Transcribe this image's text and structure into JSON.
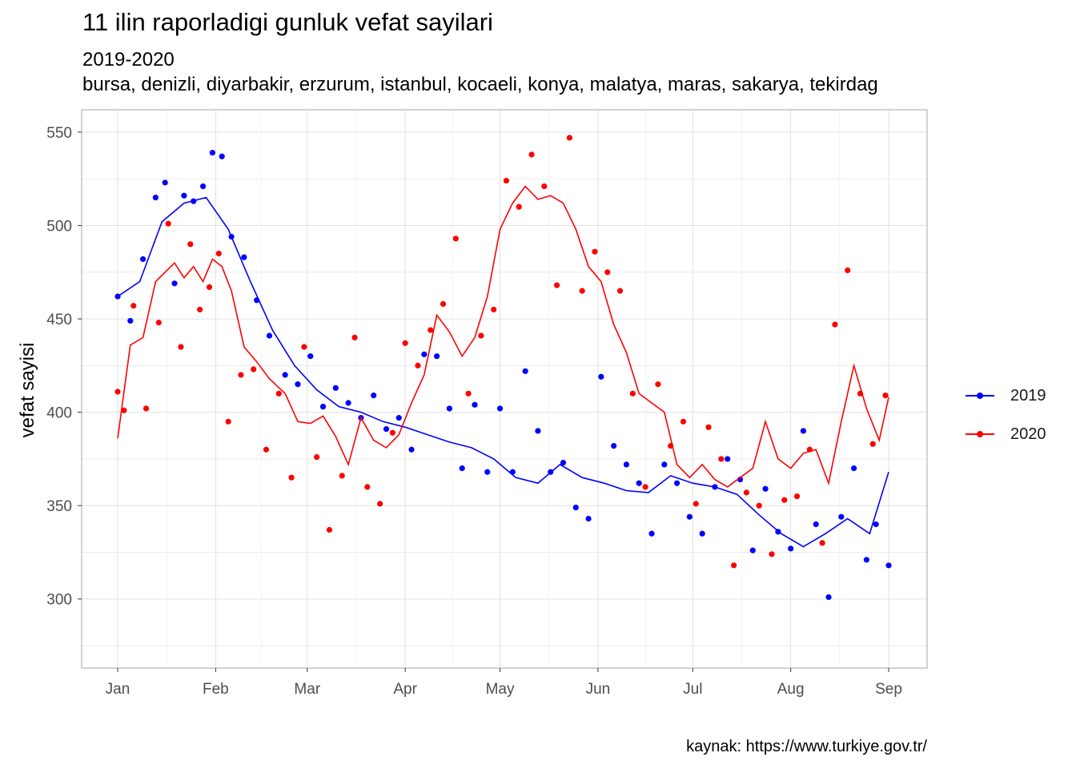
{
  "header": {
    "title": "11 ilin raporladigi gunluk vefat sayilari",
    "subtitle": "2019-2020",
    "subtitle2": "bursa, denizli, diyarbakir, erzurum, istanbul, kocaeli, konya, malatya, maras, sakarya, tekirdag"
  },
  "caption": "kaynak: https://www.turkiye.gov.tr/",
  "chart_data": {
    "type": "scatter",
    "xlabel": "",
    "ylabel": "vefat sayisi",
    "x_ticks": [
      "Jan",
      "Feb",
      "Mar",
      "Apr",
      "May",
      "Jun",
      "Jul",
      "Aug",
      "Sep"
    ],
    "y_ticks": [
      300,
      350,
      400,
      450,
      500,
      550
    ],
    "xlim": [
      1,
      245
    ],
    "ylim": [
      263,
      562
    ],
    "grid": true,
    "legend_position": "right",
    "series": [
      {
        "name": "2019",
        "color": "#0000ff",
        "smoothed": [
          [
            1,
            462
          ],
          [
            8,
            470
          ],
          [
            15,
            502
          ],
          [
            22,
            512
          ],
          [
            29,
            515
          ],
          [
            36,
            498
          ],
          [
            43,
            470
          ],
          [
            50,
            444
          ],
          [
            57,
            425
          ],
          [
            64,
            412
          ],
          [
            71,
            403
          ],
          [
            78,
            400
          ],
          [
            85,
            395
          ],
          [
            92,
            392
          ],
          [
            99,
            388
          ],
          [
            106,
            384
          ],
          [
            113,
            381
          ],
          [
            120,
            375
          ],
          [
            127,
            365
          ],
          [
            134,
            362
          ],
          [
            141,
            372
          ],
          [
            148,
            365
          ],
          [
            155,
            362
          ],
          [
            162,
            358
          ],
          [
            169,
            357
          ],
          [
            176,
            366
          ],
          [
            183,
            362
          ],
          [
            190,
            360
          ],
          [
            197,
            356
          ],
          [
            204,
            345
          ],
          [
            211,
            335
          ],
          [
            218,
            328
          ],
          [
            225,
            335
          ],
          [
            232,
            343
          ],
          [
            239,
            335
          ],
          [
            245,
            368
          ]
        ],
        "points": [
          [
            1,
            462
          ],
          [
            5,
            449
          ],
          [
            9,
            482
          ],
          [
            13,
            515
          ],
          [
            16,
            523
          ],
          [
            19,
            469
          ],
          [
            22,
            516
          ],
          [
            25,
            513
          ],
          [
            28,
            521
          ],
          [
            31,
            539
          ],
          [
            34,
            537
          ],
          [
            37,
            494
          ],
          [
            41,
            483
          ],
          [
            45,
            460
          ],
          [
            49,
            441
          ],
          [
            54,
            420
          ],
          [
            58,
            415
          ],
          [
            62,
            430
          ],
          [
            66,
            403
          ],
          [
            70,
            413
          ],
          [
            74,
            405
          ],
          [
            78,
            397
          ],
          [
            82,
            409
          ],
          [
            86,
            391
          ],
          [
            90,
            397
          ],
          [
            94,
            380
          ],
          [
            98,
            431
          ],
          [
            102,
            430
          ],
          [
            106,
            402
          ],
          [
            110,
            370
          ],
          [
            114,
            404
          ],
          [
            118,
            368
          ],
          [
            122,
            402
          ],
          [
            126,
            368
          ],
          [
            130,
            422
          ],
          [
            134,
            390
          ],
          [
            138,
            368
          ],
          [
            142,
            373
          ],
          [
            146,
            349
          ],
          [
            150,
            343
          ],
          [
            154,
            419
          ],
          [
            158,
            382
          ],
          [
            162,
            372
          ],
          [
            166,
            362
          ],
          [
            170,
            335
          ],
          [
            174,
            372
          ],
          [
            178,
            362
          ],
          [
            182,
            344
          ],
          [
            186,
            335
          ],
          [
            190,
            360
          ],
          [
            194,
            375
          ],
          [
            198,
            364
          ],
          [
            202,
            326
          ],
          [
            206,
            359
          ],
          [
            210,
            336
          ],
          [
            214,
            327
          ],
          [
            218,
            390
          ],
          [
            222,
            340
          ],
          [
            226,
            301
          ],
          [
            230,
            344
          ],
          [
            234,
            370
          ],
          [
            238,
            321
          ],
          [
            241,
            340
          ],
          [
            245,
            318
          ]
        ]
      },
      {
        "name": "2020",
        "color": "#ff0000",
        "smoothed": [
          [
            1,
            386
          ],
          [
            5,
            436
          ],
          [
            9,
            440
          ],
          [
            13,
            470
          ],
          [
            16,
            475
          ],
          [
            19,
            480
          ],
          [
            22,
            472
          ],
          [
            25,
            478
          ],
          [
            28,
            470
          ],
          [
            31,
            482
          ],
          [
            34,
            478
          ],
          [
            37,
            465
          ],
          [
            41,
            435
          ],
          [
            45,
            427
          ],
          [
            49,
            418
          ],
          [
            54,
            410
          ],
          [
            58,
            395
          ],
          [
            62,
            394
          ],
          [
            66,
            398
          ],
          [
            70,
            387
          ],
          [
            74,
            372
          ],
          [
            78,
            397
          ],
          [
            82,
            385
          ],
          [
            86,
            381
          ],
          [
            90,
            388
          ],
          [
            94,
            405
          ],
          [
            98,
            420
          ],
          [
            102,
            452
          ],
          [
            106,
            443
          ],
          [
            110,
            430
          ],
          [
            114,
            440
          ],
          [
            118,
            462
          ],
          [
            122,
            498
          ],
          [
            126,
            512
          ],
          [
            130,
            521
          ],
          [
            134,
            514
          ],
          [
            138,
            516
          ],
          [
            142,
            512
          ],
          [
            146,
            498
          ],
          [
            150,
            478
          ],
          [
            154,
            470
          ],
          [
            158,
            447
          ],
          [
            162,
            432
          ],
          [
            166,
            410
          ],
          [
            170,
            405
          ],
          [
            174,
            400
          ],
          [
            178,
            372
          ],
          [
            182,
            365
          ],
          [
            186,
            372
          ],
          [
            190,
            364
          ],
          [
            194,
            360
          ],
          [
            198,
            365
          ],
          [
            202,
            370
          ],
          [
            206,
            395
          ],
          [
            210,
            375
          ],
          [
            214,
            370
          ],
          [
            218,
            378
          ],
          [
            222,
            380
          ],
          [
            226,
            362
          ],
          [
            230,
            395
          ],
          [
            234,
            425
          ],
          [
            238,
            402
          ],
          [
            242,
            385
          ],
          [
            245,
            408
          ]
        ],
        "points": [
          [
            1,
            411
          ],
          [
            3,
            401
          ],
          [
            6,
            457
          ],
          [
            10,
            402
          ],
          [
            14,
            448
          ],
          [
            17,
            501
          ],
          [
            21,
            435
          ],
          [
            24,
            490
          ],
          [
            27,
            455
          ],
          [
            30,
            467
          ],
          [
            33,
            485
          ],
          [
            36,
            395
          ],
          [
            40,
            420
          ],
          [
            44,
            423
          ],
          [
            48,
            380
          ],
          [
            52,
            410
          ],
          [
            56,
            365
          ],
          [
            60,
            435
          ],
          [
            64,
            376
          ],
          [
            68,
            337
          ],
          [
            72,
            366
          ],
          [
            76,
            440
          ],
          [
            80,
            360
          ],
          [
            84,
            351
          ],
          [
            88,
            389
          ],
          [
            92,
            437
          ],
          [
            96,
            425
          ],
          [
            100,
            444
          ],
          [
            104,
            458
          ],
          [
            108,
            493
          ],
          [
            112,
            410
          ],
          [
            116,
            441
          ],
          [
            120,
            455
          ],
          [
            124,
            524
          ],
          [
            128,
            510
          ],
          [
            132,
            538
          ],
          [
            136,
            521
          ],
          [
            140,
            468
          ],
          [
            144,
            547
          ],
          [
            148,
            465
          ],
          [
            152,
            486
          ],
          [
            156,
            475
          ],
          [
            160,
            465
          ],
          [
            164,
            410
          ],
          [
            168,
            360
          ],
          [
            172,
            415
          ],
          [
            176,
            382
          ],
          [
            180,
            395
          ],
          [
            184,
            351
          ],
          [
            188,
            392
          ],
          [
            192,
            375
          ],
          [
            196,
            318
          ],
          [
            200,
            357
          ],
          [
            204,
            350
          ],
          [
            208,
            324
          ],
          [
            212,
            353
          ],
          [
            216,
            355
          ],
          [
            220,
            380
          ],
          [
            224,
            330
          ],
          [
            228,
            447
          ],
          [
            232,
            476
          ],
          [
            236,
            410
          ],
          [
            240,
            383
          ],
          [
            244,
            409
          ]
        ]
      }
    ]
  }
}
